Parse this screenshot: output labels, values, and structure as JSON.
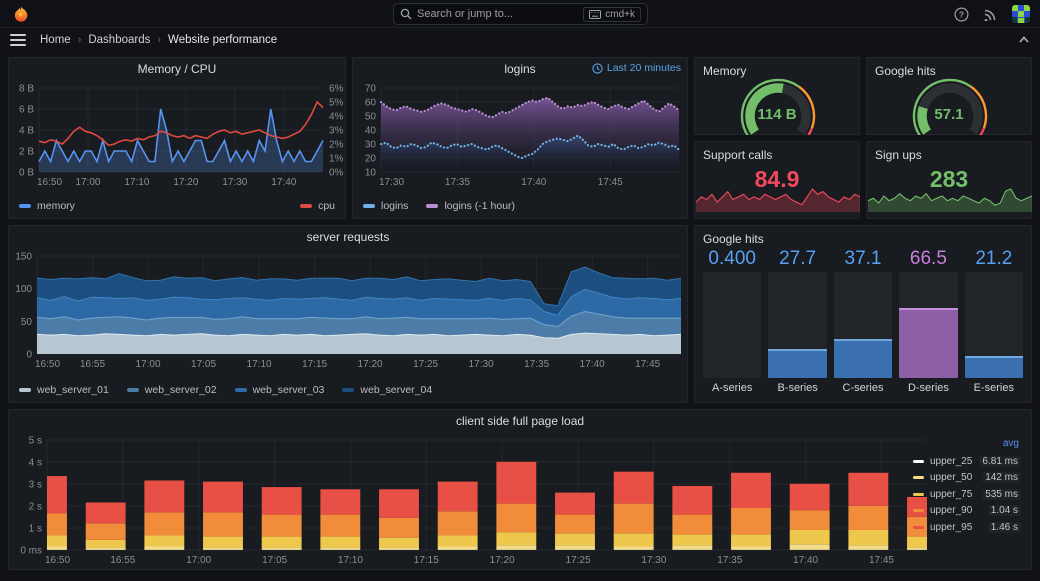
{
  "topbar": {
    "search_placeholder": "Search or jump to...",
    "shortcut": "cmd+k"
  },
  "breadcrumb": {
    "items": [
      "Home",
      "Dashboards",
      "Website performance"
    ]
  },
  "panels": {
    "memory_cpu": {
      "title": "Memory / CPU"
    },
    "logins": {
      "title": "logins",
      "time_range": "Last 20 minutes"
    },
    "memory_stat": {
      "title": "Memory",
      "value": "114 B"
    },
    "google_stat": {
      "title": "Google hits",
      "value": "57.1"
    },
    "support_calls": {
      "title": "Support calls",
      "value": "84.9"
    },
    "sign_ups": {
      "title": "Sign ups",
      "value": "283"
    },
    "server_requests": {
      "title": "server requests"
    },
    "google_hits_bars": {
      "title": "Google hits"
    },
    "page_load": {
      "title": "client side full page load"
    }
  },
  "colors": {
    "page_bg": "#111217",
    "panel_bg": "#181b1f",
    "accent_blue": "#58a6e8",
    "legend_avg_header": "#5794f2",
    "green": "#73bf69",
    "red": "#f2495c",
    "orange": "#ff9830",
    "grid": "rgba(204,212,224,0.07)"
  },
  "chart_data": {
    "memory_cpu": {
      "type": "line",
      "span_min": 58,
      "tick_min": 10,
      "x_ticks": [
        "16:50",
        "17:00",
        "17:10",
        "17:20",
        "17:30",
        "17:40"
      ],
      "left_axis": {
        "ticks": [
          "0 B",
          "2 B",
          "4 B",
          "6 B",
          "8 B"
        ],
        "min": 0,
        "max": 8
      },
      "right_axis": {
        "ticks": [
          "0%",
          "1%",
          "2%",
          "3%",
          "4%",
          "5%",
          "6%"
        ],
        "min": 0,
        "max": 6
      },
      "series": [
        {
          "name": "memory",
          "color": "#5794f2",
          "axis": "left",
          "fill": "rgba(87,148,242,0.25)",
          "values": [
            1,
            2,
            1,
            3,
            2,
            1,
            2,
            1,
            2,
            2,
            1,
            3,
            1,
            2,
            2,
            2,
            1,
            3,
            2,
            1,
            1,
            6,
            4,
            1,
            2,
            1,
            2,
            3,
            3,
            1,
            1,
            2,
            3,
            1,
            2,
            1,
            2,
            1,
            3,
            2,
            6,
            3,
            1,
            2,
            1,
            2,
            1,
            1,
            2,
            3
          ]
        },
        {
          "name": "cpu",
          "color": "#e0493f",
          "axis": "right",
          "fill": null,
          "values": [
            2.2,
            2.1,
            2.3,
            2.2,
            2.0,
            2.4,
            2.9,
            3.2,
            2.9,
            2.8,
            2.6,
            2.3,
            1.9,
            2.0,
            2.2,
            2.3,
            2.2,
            2.4,
            2.3,
            2.5,
            2.6,
            2.9,
            2.8,
            2.6,
            2.5,
            2.6,
            2.4,
            2.6,
            2.5,
            2.4,
            2.7,
            2.9,
            3.0,
            2.8,
            2.9,
            2.7,
            2.8,
            2.9,
            3.0,
            2.8,
            2.6,
            2.5,
            2.4,
            2.5,
            2.7,
            2.9,
            3.4,
            4.1,
            5.0,
            4.6
          ]
        }
      ]
    },
    "logins": {
      "type": "line",
      "span_min": 19.5,
      "tick_min": 5,
      "x_ticks": [
        "17:30",
        "17:35",
        "17:40",
        "17:45"
      ],
      "left_axis": {
        "ticks": [
          "10",
          "20",
          "30",
          "40",
          "50",
          "60",
          "70"
        ],
        "min": 10,
        "max": 70
      },
      "series": [
        {
          "name": "logins (-1 hour)",
          "color": "#b98fd1",
          "dotted": true,
          "gradient": [
            "rgba(152,103,189,0.75)",
            "rgba(30,28,55,0.08)"
          ],
          "values": [
            60,
            57,
            55,
            54,
            56,
            57,
            55,
            54,
            53,
            54,
            56,
            58,
            59,
            58,
            56,
            55,
            54,
            53,
            55,
            54,
            52,
            50,
            49,
            51,
            53,
            52,
            54,
            56,
            58,
            60,
            61,
            60,
            62,
            63,
            60,
            57,
            55,
            57,
            56,
            58,
            57,
            59,
            60,
            58,
            56,
            55,
            57,
            58,
            56,
            55,
            57,
            59,
            61,
            58,
            55,
            53,
            56,
            59,
            57,
            54
          ]
        },
        {
          "name": "logins",
          "color": "#6fb2e8",
          "dotted": true,
          "gradient": [
            "rgba(58,94,150,0.55)",
            "rgba(15,20,40,0.05)"
          ],
          "values": [
            30,
            31,
            28,
            27,
            29,
            28,
            30,
            29,
            27,
            28,
            31,
            30,
            28,
            27,
            29,
            30,
            28,
            29,
            30,
            28,
            27,
            26,
            28,
            29,
            27,
            25,
            23,
            21,
            20,
            22,
            23,
            26,
            30,
            32,
            33,
            34,
            33,
            32,
            34,
            36,
            33,
            29,
            28,
            30,
            29,
            28,
            30,
            27,
            26,
            28,
            29,
            27,
            28,
            30,
            29,
            31,
            30,
            28,
            29,
            26
          ]
        }
      ],
      "legend_order": [
        "logins",
        "logins (-1 hour)"
      ]
    },
    "server_requests": {
      "type": "area-stacked",
      "span_min": 58,
      "tick_min": 5,
      "x_ticks": [
        "16:50",
        "16:55",
        "17:00",
        "17:05",
        "17:10",
        "17:15",
        "17:20",
        "17:25",
        "17:30",
        "17:35",
        "17:40",
        "17:45"
      ],
      "left_axis": {
        "ticks": [
          "0",
          "50",
          "100",
          "150"
        ],
        "min": 0,
        "max": 150
      },
      "series": [
        {
          "name": "web_server_01",
          "color": "#b6c7d2",
          "line": "#dde9f0",
          "values": [
            30,
            29,
            30,
            28,
            29,
            31,
            30,
            29,
            28,
            30,
            29,
            30,
            31,
            29,
            28,
            30,
            29,
            28,
            30,
            29,
            30,
            28,
            29,
            30,
            31,
            29,
            28,
            30,
            29,
            30,
            28,
            29,
            30,
            29,
            28,
            30,
            29,
            25,
            24,
            30,
            32,
            31,
            30,
            29,
            30,
            28,
            29,
            30
          ]
        },
        {
          "name": "web_server_02",
          "color": "#4d7ca9",
          "line": "#74a7cf",
          "values": [
            26,
            25,
            27,
            24,
            26,
            25,
            27,
            26,
            24,
            25,
            27,
            26,
            25,
            24,
            26,
            27,
            25,
            26,
            24,
            25,
            26,
            27,
            25,
            24,
            26,
            25,
            27,
            26,
            25,
            24,
            26,
            25,
            24,
            26,
            25,
            24,
            26,
            20,
            18,
            28,
            33,
            30,
            27,
            26,
            25,
            27,
            26,
            25
          ]
        },
        {
          "name": "web_server_03",
          "color": "#2d6aa5",
          "line": "#4186c6",
          "values": [
            30,
            28,
            31,
            29,
            32,
            30,
            28,
            31,
            30,
            29,
            31,
            30,
            28,
            30,
            31,
            29,
            30,
            28,
            31,
            30,
            29,
            31,
            30,
            28,
            30,
            31,
            29,
            30,
            28,
            31,
            30,
            29,
            28,
            30,
            29,
            31,
            28,
            20,
            17,
            30,
            34,
            32,
            30,
            29,
            31,
            30,
            28,
            30
          ]
        },
        {
          "name": "web_server_04",
          "color": "#1c4e7f",
          "line": "#3273ae",
          "values": [
            30,
            32,
            28,
            34,
            30,
            29,
            38,
            31,
            30,
            29,
            31,
            30,
            33,
            29,
            30,
            31,
            29,
            33,
            30,
            29,
            31,
            30,
            32,
            30,
            29,
            31,
            30,
            32,
            30,
            29,
            31,
            30,
            29,
            31,
            30,
            29,
            28,
            12,
            15,
            38,
            34,
            31,
            30,
            32,
            29,
            31,
            30,
            31
          ]
        }
      ]
    },
    "google_hits_bars": {
      "type": "bar-gauge",
      "max": 100,
      "bars": [
        {
          "label": "A-series",
          "value": "0.400",
          "num": 0.4,
          "fill": "#3a6fb0",
          "cap": "#6fa8dc",
          "value_color": "#57a0f2"
        },
        {
          "label": "B-series",
          "value": "27.7",
          "num": 27.7,
          "fill": "#3a6fb0",
          "cap": "#6fa8dc",
          "value_color": "#57a0f2"
        },
        {
          "label": "C-series",
          "value": "37.1",
          "num": 37.1,
          "fill": "#3a6fb0",
          "cap": "#6fa8dc",
          "value_color": "#57a0f2"
        },
        {
          "label": "D-series",
          "value": "66.5",
          "num": 66.5,
          "fill": "#8d5fa6",
          "cap": "#c490d8",
          "value_color": "#c77fd9"
        },
        {
          "label": "E-series",
          "value": "21.2",
          "num": 21.2,
          "fill": "#3a6fb0",
          "cap": "#6fa8dc",
          "value_color": "#57a0f2"
        }
      ]
    },
    "page_load": {
      "type": "bar-stacked",
      "span_min": 58,
      "tick_min": 5,
      "x_ticks": [
        "16:50",
        "16:55",
        "17:00",
        "17:05",
        "17:10",
        "17:15",
        "17:20",
        "17:25",
        "17:30",
        "17:35",
        "17:40",
        "17:45"
      ],
      "left_axis": {
        "ticks": [
          "0 ms",
          "1 s",
          "2 s",
          "3 s",
          "4 s",
          "5 s"
        ],
        "min": 0,
        "max": 5
      },
      "legend_header": "avg",
      "series_meta": [
        {
          "name": "upper_25",
          "color": "#ffffff",
          "avg": "6.81 ms"
        },
        {
          "name": "upper_50",
          "color": "#f3dc8a",
          "avg": "142 ms"
        },
        {
          "name": "upper_75",
          "color": "#edc84d",
          "avg": "535 ms"
        },
        {
          "name": "upper_90",
          "color": "#f08c3a",
          "avg": "1.04 s"
        },
        {
          "name": "upper_95",
          "color": "#e84f45",
          "avg": "1.46 s"
        }
      ],
      "bars": [
        [
          0.01,
          0.15,
          0.5,
          1.0,
          1.7
        ],
        [
          0.01,
          0.1,
          0.35,
          0.75,
          0.95
        ],
        [
          0.01,
          0.15,
          0.5,
          1.05,
          1.45
        ],
        [
          0.01,
          0.1,
          0.5,
          1.1,
          1.4
        ],
        [
          0.01,
          0.1,
          0.5,
          1.0,
          1.25
        ],
        [
          0.01,
          0.1,
          0.5,
          1.0,
          1.15
        ],
        [
          0.01,
          0.1,
          0.45,
          0.9,
          1.3
        ],
        [
          0.01,
          0.15,
          0.5,
          1.1,
          1.35
        ],
        [
          0.01,
          0.2,
          0.6,
          1.3,
          1.9
        ],
        [
          0.01,
          0.2,
          0.55,
          0.85,
          1.0
        ],
        [
          0.01,
          0.15,
          0.6,
          1.35,
          1.45
        ],
        [
          0.01,
          0.2,
          0.5,
          0.9,
          1.3
        ],
        [
          0.01,
          0.15,
          0.55,
          1.2,
          1.6
        ],
        [
          0.01,
          0.25,
          0.65,
          0.9,
          1.2
        ],
        [
          0.01,
          0.2,
          0.7,
          1.1,
          1.5
        ],
        [
          0.01,
          0.1,
          0.5,
          0.9,
          0.9
        ]
      ]
    },
    "memory_gauge": {
      "value": "114 B",
      "fraction": 0.54,
      "color": "#73bf69",
      "thresholds": [
        [
          0,
          0.64,
          "#73bf69"
        ],
        [
          0.64,
          0.94,
          "#ff9830"
        ],
        [
          0.94,
          1,
          "#f2495c"
        ]
      ]
    },
    "google_gauge": {
      "value": "57.1",
      "fraction": 0.21,
      "color": "#73bf69",
      "thresholds": [
        [
          0,
          0.64,
          "#73bf69"
        ],
        [
          0.64,
          0.94,
          "#ff9830"
        ],
        [
          0.94,
          1,
          "#f2495c"
        ]
      ]
    },
    "support_spark": {
      "color": "#f2495c",
      "fill": "rgba(242,73,92,0.28)",
      "values": [
        3,
        5,
        4,
        6,
        3,
        5,
        7,
        4,
        5,
        6,
        4,
        5,
        4,
        6,
        5,
        4,
        5,
        6,
        4,
        3,
        2,
        5,
        8,
        6,
        7,
        5,
        4,
        3,
        5,
        4,
        6,
        5
      ]
    },
    "signups_spark": {
      "color": "#73bf69",
      "fill": "rgba(115,191,105,0.28)",
      "values": [
        4,
        5,
        3,
        6,
        4,
        5,
        7,
        5,
        4,
        6,
        5,
        7,
        4,
        5,
        6,
        4,
        5,
        4,
        6,
        5,
        4,
        3,
        5,
        4,
        2,
        3,
        8,
        9,
        5,
        4,
        5,
        6
      ]
    }
  }
}
